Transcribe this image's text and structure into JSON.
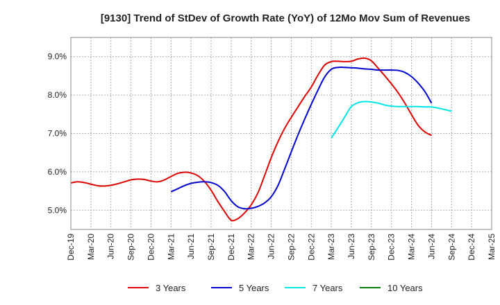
{
  "chart_data": {
    "type": "line",
    "title": "[9130]  Trend of StDev of Growth Rate (YoY) of 12Mo Mov Sum of Revenues",
    "xlabel": "",
    "ylabel": "",
    "ylim": [
      4.5,
      9.5
    ],
    "yticks": [
      5.0,
      6.0,
      7.0,
      8.0,
      9.0
    ],
    "ytick_labels": [
      "5.0%",
      "6.0%",
      "7.0%",
      "8.0%",
      "9.0%"
    ],
    "x_start": "Dec-19",
    "x_end": "Mar-25",
    "x_tick_labels": [
      "Dec-19",
      "Mar-20",
      "Jun-20",
      "Sep-20",
      "Dec-20",
      "Mar-21",
      "Jun-21",
      "Sep-21",
      "Dec-21",
      "Mar-22",
      "Jun-22",
      "Sep-22",
      "Dec-22",
      "Mar-23",
      "Jun-23",
      "Sep-23",
      "Dec-23",
      "Mar-24",
      "Jun-24",
      "Sep-24",
      "Dec-24",
      "Mar-25"
    ],
    "grid": true,
    "legend_position": "bottom",
    "series": [
      {
        "name": "3 Years",
        "color": "#dd0000",
        "start_index": 0,
        "values": [
          5.71,
          5.74,
          5.72,
          5.68,
          5.64,
          5.63,
          5.65,
          5.69,
          5.74,
          5.79,
          5.81,
          5.8,
          5.76,
          5.74,
          5.79,
          5.88,
          5.96,
          5.99,
          5.97,
          5.9,
          5.75,
          5.52,
          5.23,
          4.97,
          4.74,
          4.78,
          4.93,
          5.14,
          5.45,
          5.9,
          6.37,
          6.78,
          7.13,
          7.42,
          7.69,
          7.96,
          8.21,
          8.52,
          8.78,
          8.87,
          8.88,
          8.87,
          8.88,
          8.94,
          8.96,
          8.89,
          8.7,
          8.5,
          8.29,
          8.06,
          7.79,
          7.49,
          7.21,
          7.04,
          6.95
        ]
      },
      {
        "name": "5 Years",
        "color": "#0000cc",
        "start_index": 15,
        "values": [
          5.48,
          5.56,
          5.64,
          5.7,
          5.73,
          5.74,
          5.72,
          5.65,
          5.49,
          5.25,
          5.09,
          5.04,
          5.05,
          5.1,
          5.19,
          5.35,
          5.64,
          6.07,
          6.52,
          6.96,
          7.37,
          7.76,
          8.13,
          8.47,
          8.67,
          8.72,
          8.72,
          8.71,
          8.7,
          8.68,
          8.67,
          8.65,
          8.65,
          8.65,
          8.64,
          8.59,
          8.48,
          8.31,
          8.09,
          7.79
        ]
      },
      {
        "name": "7 Years",
        "color": "#00e5e5",
        "start_index": 39,
        "values": [
          6.88,
          7.15,
          7.43,
          7.7,
          7.8,
          7.83,
          7.82,
          7.79,
          7.74,
          7.71,
          7.7,
          7.7,
          7.7,
          7.7,
          7.69,
          7.69,
          7.66,
          7.62,
          7.58
        ]
      },
      {
        "name": "10 Years",
        "color": "#008000",
        "start_index": 0,
        "values": []
      }
    ]
  }
}
